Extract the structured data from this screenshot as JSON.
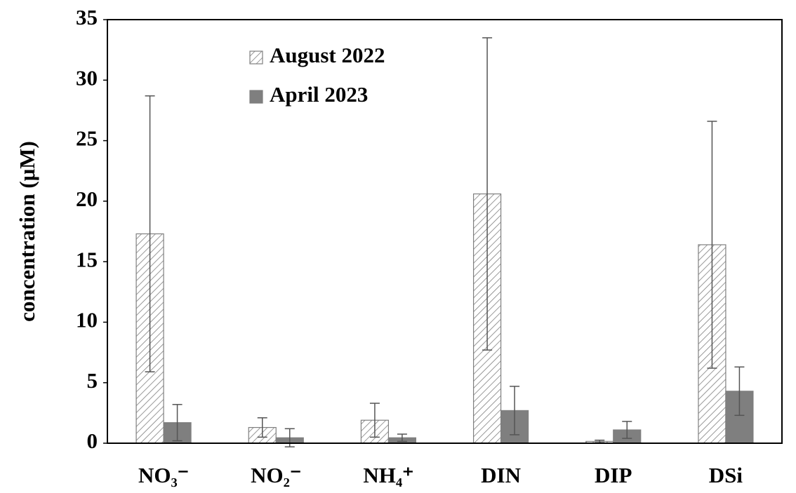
{
  "chart_data": {
    "type": "bar",
    "ylabel": "concentration (μM)",
    "categories": [
      "NO₃⁻",
      "NO₂⁻",
      "NH₄⁺",
      "DIN",
      "DIP",
      "DSi"
    ],
    "series": [
      {
        "name": "August 2022",
        "color": "#7f7f7f",
        "pattern": "hatch",
        "values": [
          17.3,
          1.3,
          1.9,
          20.6,
          0.15,
          16.4
        ],
        "errors": [
          11.4,
          0.8,
          1.4,
          12.9,
          0.1,
          10.2
        ]
      },
      {
        "name": "April 2023",
        "color": "#7f7f7f",
        "pattern": "solid",
        "values": [
          1.7,
          0.45,
          0.45,
          2.7,
          1.1,
          4.3
        ],
        "errors": [
          1.5,
          0.75,
          0.3,
          2.0,
          0.7,
          2.0
        ]
      }
    ],
    "ylim": [
      0,
      35
    ],
    "yticks": [
      0,
      5,
      10,
      15,
      20,
      25,
      30,
      35
    ],
    "grid": false,
    "legend": "upper left"
  }
}
